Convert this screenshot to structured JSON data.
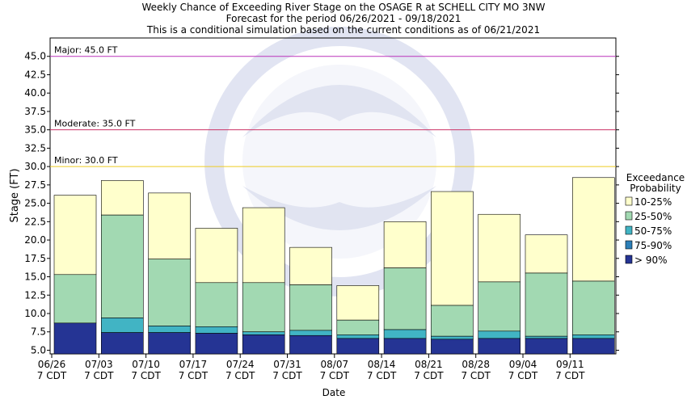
{
  "chart_data": {
    "type": "bar",
    "stacked": true,
    "title_lines": [
      "Weekly Chance of Exceeding River Stage on the OSAGE R at SCHELL CITY MO 3NW",
      "Forecast for the period 06/26/2021 - 09/18/2021",
      "This is a conditional simulation based on the current conditions as of 06/21/2021"
    ],
    "xlabel": "Date",
    "ylabel": "Stage (FT)",
    "ylim": [
      4.5,
      47.5
    ],
    "y_ticks": [
      5.0,
      7.5,
      10.0,
      12.5,
      15.0,
      17.5,
      20.0,
      22.5,
      25.0,
      27.5,
      30.0,
      32.5,
      35.0,
      37.5,
      40.0,
      42.5,
      45.0
    ],
    "y_tick_labels": [
      "5.0",
      "7.5",
      "10.0",
      "12.5",
      "15.0",
      "17.5",
      "20.0",
      "22.5",
      "25.0",
      "27.5",
      "30.0",
      "32.5",
      "35.0",
      "37.5",
      "40.0",
      "42.5",
      "45.0"
    ],
    "x_ticks": [
      {
        "date": "06/26",
        "tz": "7 CDT"
      },
      {
        "date": "07/03",
        "tz": "7 CDT"
      },
      {
        "date": "07/10",
        "tz": "7 CDT"
      },
      {
        "date": "07/17",
        "tz": "7 CDT"
      },
      {
        "date": "07/24",
        "tz": "7 CDT"
      },
      {
        "date": "07/31",
        "tz": "7 CDT"
      },
      {
        "date": "08/07",
        "tz": "7 CDT"
      },
      {
        "date": "08/14",
        "tz": "7 CDT"
      },
      {
        "date": "08/21",
        "tz": "7 CDT"
      },
      {
        "date": "08/28",
        "tz": "7 CDT"
      },
      {
        "date": "09/04",
        "tz": "7 CDT"
      },
      {
        "date": "09/11",
        "tz": "7 CDT"
      }
    ],
    "thresholds": [
      {
        "label": "Major: 45.0 FT",
        "value": 45.0,
        "color": "#bb33bb"
      },
      {
        "label": "Moderate: 35.0 FT",
        "value": 35.0,
        "color": "#cc3366"
      },
      {
        "label": "Minor: 30.0 FT",
        "value": 30.0,
        "color": "#eecc22"
      }
    ],
    "legend_title": [
      "Exceedance",
      "Probability"
    ],
    "legend_position": "right",
    "series": [
      {
        "name": "10-25%",
        "color": "#ffffcc"
      },
      {
        "name": "25-50%",
        "color": "#a2d9b2"
      },
      {
        "name": "50-75%",
        "color": "#41b4c4"
      },
      {
        "name": "75-90%",
        "color": "#2c7fb8"
      },
      {
        "name": "> 90%",
        "color": "#253494"
      }
    ],
    "bars": [
      {
        "week": "06/26",
        "levels": [
          26.1,
          15.3,
          8.7,
          8.7,
          8.7
        ]
      },
      {
        "week": "07/03",
        "levels": [
          28.1,
          23.4,
          9.4,
          7.4,
          7.4
        ]
      },
      {
        "week": "07/10",
        "levels": [
          26.4,
          17.4,
          8.3,
          7.4,
          7.4
        ]
      },
      {
        "week": "07/17",
        "levels": [
          21.6,
          14.2,
          8.2,
          7.3,
          7.3
        ]
      },
      {
        "week": "07/24",
        "levels": [
          24.4,
          14.2,
          7.5,
          7.1,
          7.1
        ]
      },
      {
        "week": "07/31",
        "levels": [
          19.0,
          13.9,
          7.7,
          7.0,
          7.0
        ]
      },
      {
        "week": "08/07",
        "levels": [
          13.8,
          9.1,
          7.1,
          6.6,
          6.6
        ]
      },
      {
        "week": "08/14",
        "levels": [
          22.5,
          16.2,
          7.8,
          6.6,
          6.6
        ]
      },
      {
        "week": "08/21",
        "levels": [
          26.6,
          11.1,
          6.9,
          6.5,
          6.5
        ]
      },
      {
        "week": "08/28",
        "levels": [
          23.5,
          14.3,
          7.6,
          6.6,
          6.6
        ]
      },
      {
        "week": "09/04",
        "levels": [
          20.7,
          15.5,
          6.9,
          6.6,
          6.6
        ]
      },
      {
        "week": "09/11",
        "levels": [
          28.5,
          14.4,
          7.1,
          6.6,
          6.6
        ]
      }
    ]
  }
}
